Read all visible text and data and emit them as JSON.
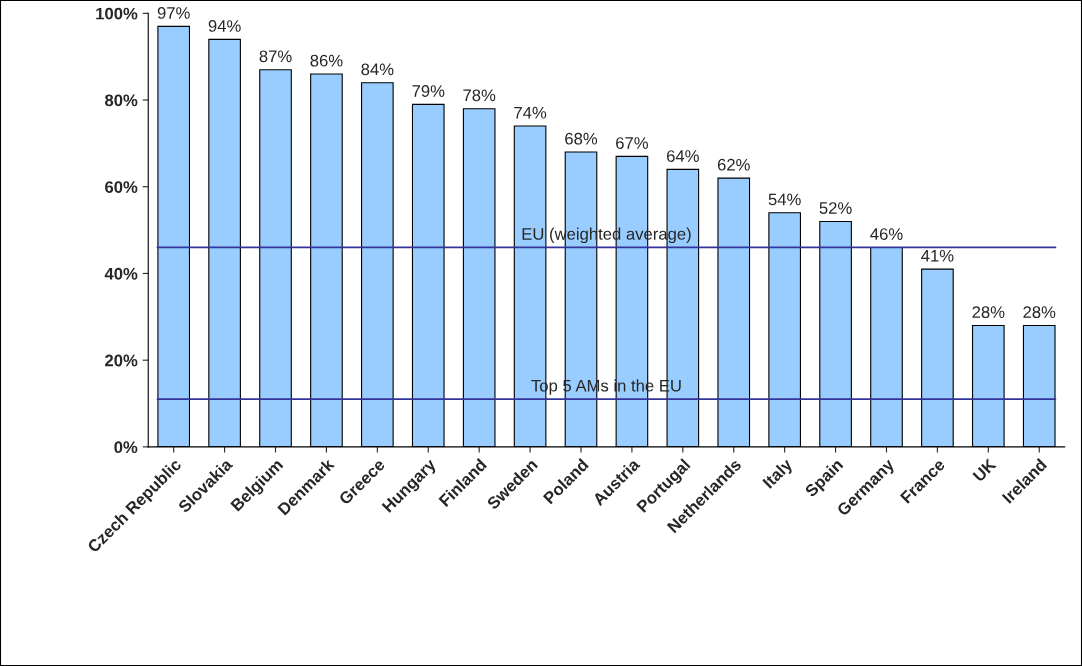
{
  "chart_data": {
    "type": "bar",
    "categories": [
      "Czech Republic",
      "Slovakia",
      "Belgium",
      "Denmark",
      "Greece",
      "Hungary",
      "Finland",
      "Sweden",
      "Poland",
      "Austria",
      "Portugal",
      "Netherlands",
      "Italy",
      "Spain",
      "Germany",
      "France",
      "UK",
      "Ireland"
    ],
    "values": [
      97,
      94,
      87,
      86,
      84,
      79,
      78,
      74,
      68,
      67,
      64,
      62,
      54,
      52,
      46,
      41,
      28,
      28
    ],
    "value_labels": [
      "97%",
      "94%",
      "87%",
      "86%",
      "84%",
      "79%",
      "78%",
      "74%",
      "68%",
      "67%",
      "64%",
      "62%",
      "54%",
      "52%",
      "46%",
      "41%",
      "28%",
      "28%"
    ],
    "color": "#99ccff",
    "ylim": [
      0,
      100
    ],
    "yticks": [
      {
        "value": 0,
        "label": "0%"
      },
      {
        "value": 20,
        "label": "20%"
      },
      {
        "value": 40,
        "label": "40%"
      },
      {
        "value": 60,
        "label": "60%"
      },
      {
        "value": 80,
        "label": "80%"
      },
      {
        "value": 100,
        "label": "100%"
      }
    ],
    "ref_lines": [
      {
        "axis": "y",
        "value": 46,
        "label": "EU (weighted average)",
        "color": "#333399"
      },
      {
        "axis": "y",
        "value": 11,
        "label": "Top 5 AMs in the EU",
        "color": "#333399"
      }
    ],
    "grid": false,
    "legend": false
  }
}
